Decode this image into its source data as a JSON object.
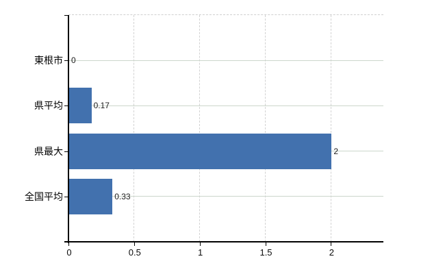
{
  "chart_data": {
    "type": "bar",
    "orientation": "horizontal",
    "title": "",
    "xlabel": "",
    "ylabel": "",
    "categories": [
      "東根市",
      "県平均",
      "県最大",
      "全国平均"
    ],
    "values": [
      0,
      0.17,
      2,
      0.33
    ],
    "data_labels": [
      "0",
      "0.17",
      "2",
      "0.33"
    ],
    "xlim": [
      0,
      2.4
    ],
    "xticks": [
      0,
      0.5,
      1,
      1.5,
      2
    ],
    "xtick_labels": [
      "0",
      "0.5",
      "1",
      "1.5",
      "2"
    ],
    "grid": true,
    "legend": "none",
    "bar_color": "#4271ae",
    "hgrid_color": "#ccd6cb",
    "vgrid_color": "#d2d2d2",
    "axis_color": "#000000"
  }
}
